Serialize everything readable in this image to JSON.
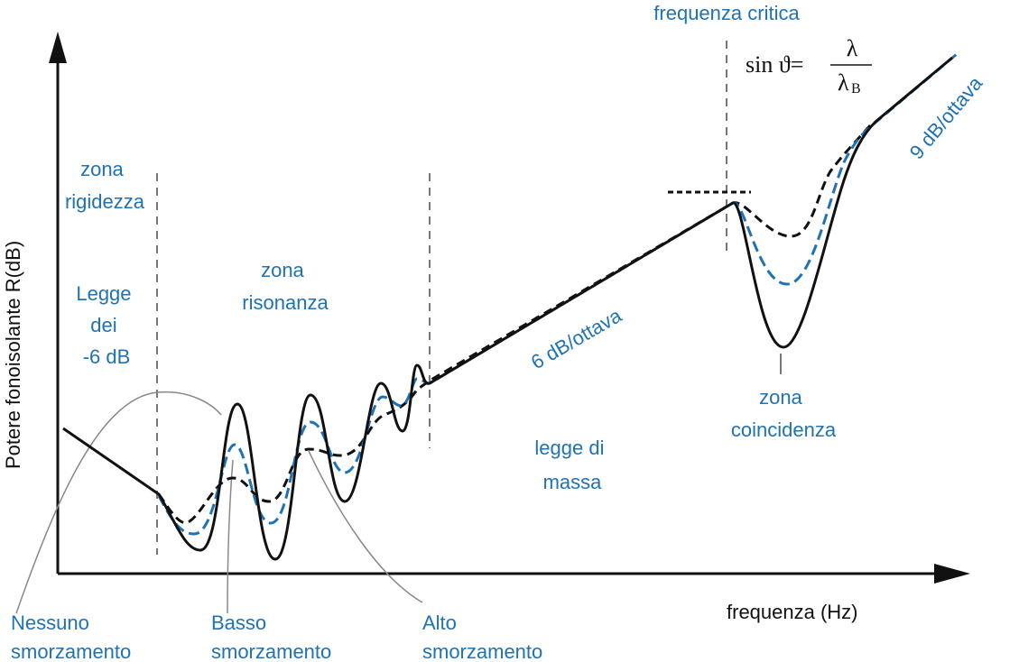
{
  "axes": {
    "y_label": "Potere fonoisolante R(dB)",
    "x_label": "frequenza (Hz)"
  },
  "zones": {
    "stiffness_title": [
      "zona",
      "rigidezza"
    ],
    "law_6db": [
      "Legge",
      "dei",
      "-6 dB"
    ],
    "resonance": [
      "zona",
      "risonanza"
    ],
    "mass_law": [
      "legge di",
      "massa"
    ],
    "coincidence": [
      "zona",
      "coincidenza"
    ],
    "critical_frequency": "frequenza critica"
  },
  "slopes": {
    "six_db": "6 dB/ottava",
    "nine_db": "9 dB/ottava"
  },
  "formula": {
    "lhs": "sin ϑ=",
    "numerator": "λ",
    "denominator_symbol": "λ",
    "denominator_subscript": "B"
  },
  "damping_labels": {
    "none": [
      "Nessuno",
      "smorzamento"
    ],
    "low": [
      "Basso",
      "smorzamento"
    ],
    "high": [
      "Alto",
      "smorzamento"
    ]
  },
  "colors": {
    "blue": "#1f72b3",
    "black": "#111111",
    "gray": "#888888"
  }
}
